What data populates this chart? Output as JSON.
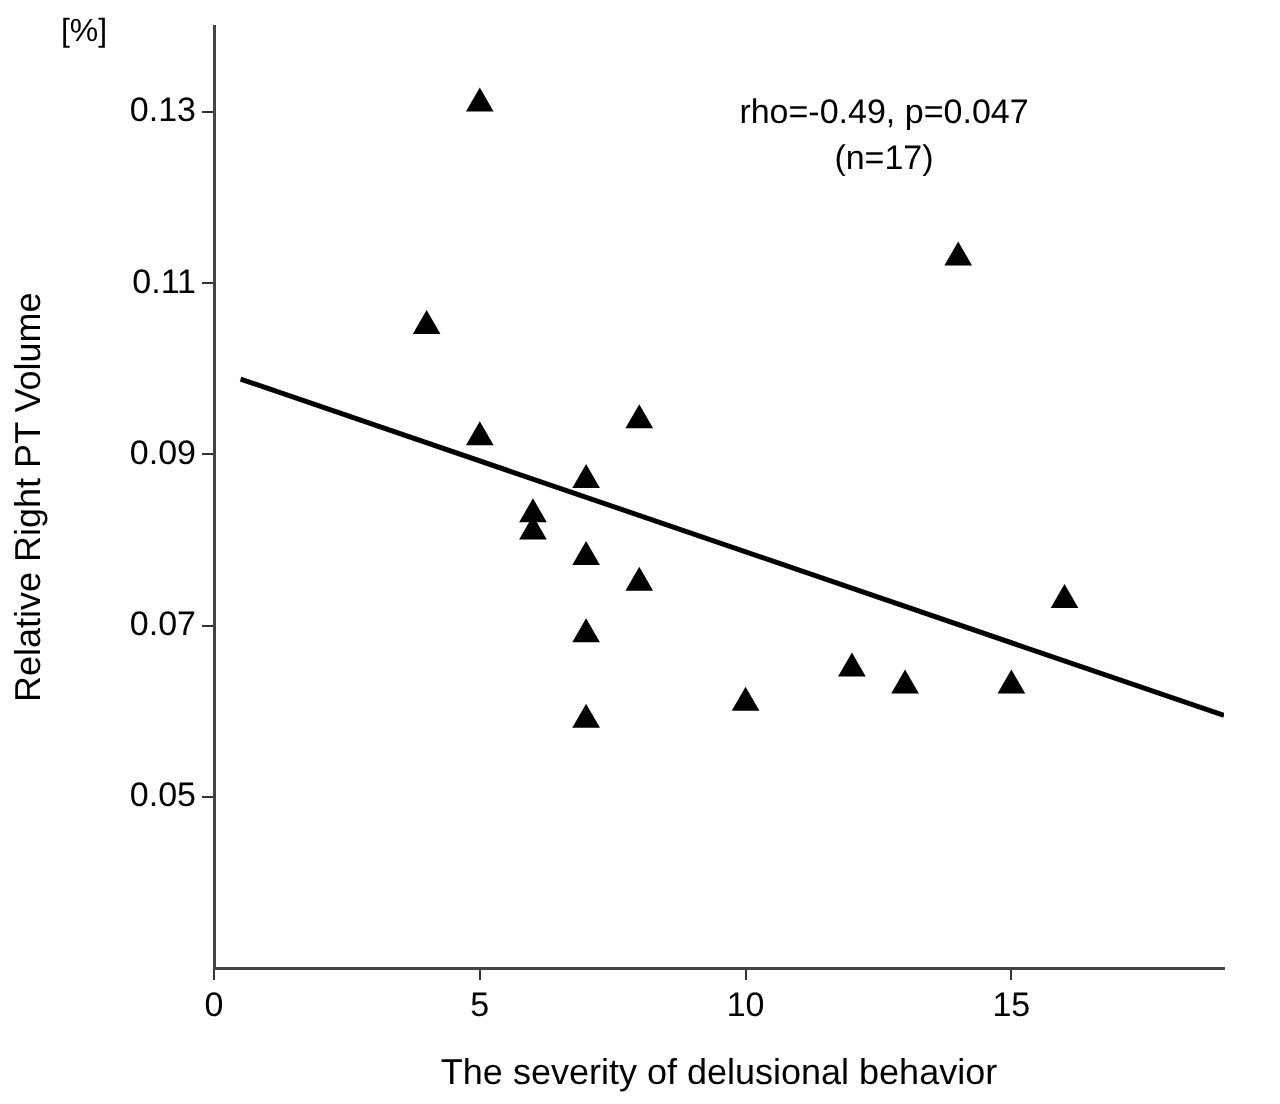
{
  "chart_data": {
    "type": "scatter",
    "xlabel": "The severity of delusional behavior",
    "ylabel": "Relative Right PT Volume",
    "annotations": [
      "[%]",
      "rho=-0.49, p=0.047",
      "(n=17)"
    ],
    "xlim": [
      0,
      19
    ],
    "xticks": [
      0,
      5,
      10,
      15
    ],
    "ylim": [
      0.03,
      0.14
    ],
    "yticks": [
      0.05,
      0.07,
      0.09,
      0.11,
      0.13
    ],
    "legend": false,
    "series": [
      {
        "color": "#000000",
        "marker": "triangle",
        "x": [
          4,
          5,
          5,
          8,
          7,
          6,
          6,
          7,
          8,
          7,
          7,
          10,
          12,
          13,
          15,
          16,
          14
        ],
        "values": [
          0.105,
          0.131,
          0.092,
          0.094,
          0.087,
          0.083,
          0.081,
          0.078,
          0.075,
          0.069,
          0.059,
          0.061,
          0.065,
          0.063,
          0.063,
          0.073,
          0.113
        ]
      },
      {
        "type": "line",
        "color": "#000000",
        "marker": "none",
        "x": [
          0.5,
          19
        ],
        "values": [
          0.0988,
          0.0595
        ]
      }
    ]
  }
}
